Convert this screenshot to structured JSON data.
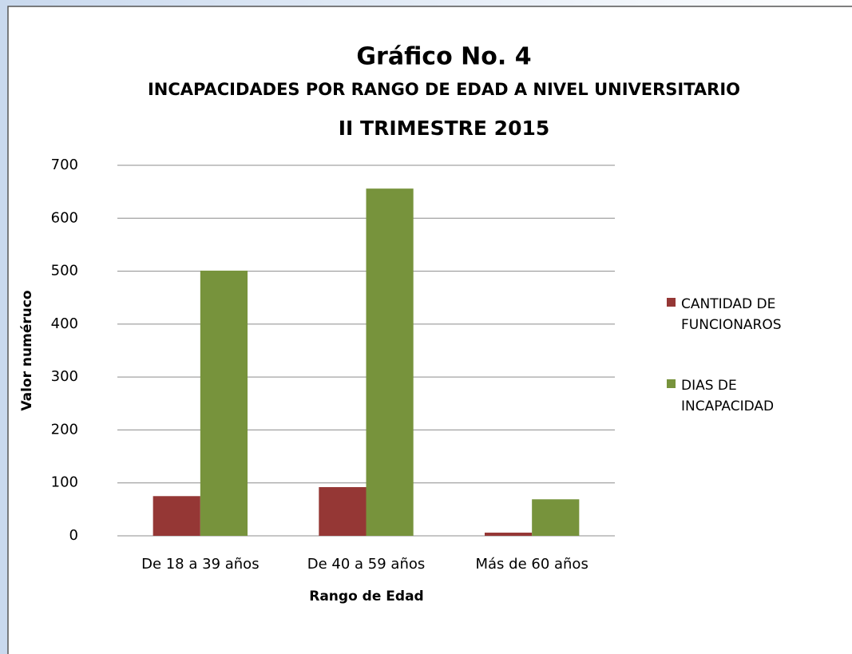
{
  "chart_data": {
    "type": "bar",
    "title": "Gráfico No. 4",
    "subtitle": "INCAPACIDADES POR RANGO DE EDAD A NIVEL UNIVERSITARIO",
    "subtitle2": "II TRIMESTRE 2015",
    "x_label": "Rango de Edad",
    "y_label": "Valor numéruco",
    "categories": [
      "De 18 a 39 años",
      "De 40 a 59 años",
      "Más de 60 años"
    ],
    "series": [
      {
        "name": "CANTIDAD DE FUNCIONAROS",
        "color": "#953735",
        "values": [
          75,
          92,
          6
        ]
      },
      {
        "name": "DIAS DE INCAPACIDAD",
        "color": "#77933c",
        "values": [
          501,
          656,
          69
        ]
      }
    ],
    "ylim": [
      0,
      700
    ],
    "yticks": [
      0,
      100,
      200,
      300,
      400,
      500,
      600,
      700
    ],
    "grid": true,
    "legend": "right"
  }
}
